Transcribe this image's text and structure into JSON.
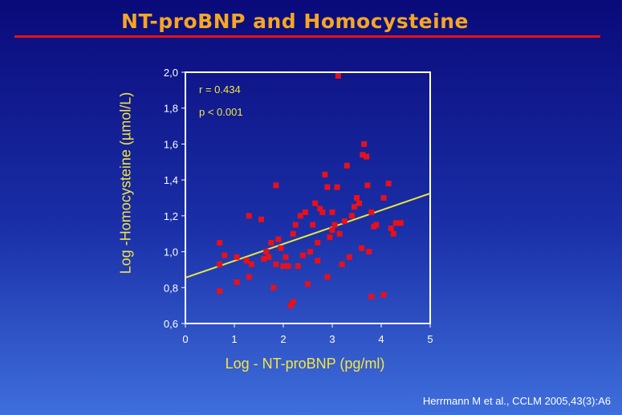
{
  "slide": {
    "title": "NT-proBNP and Homocysteine",
    "citation": "Herrmann M et al., CCLM 2005,43(3):A6"
  },
  "colors": {
    "background_top": "#0a0a7a",
    "background_bottom": "#3f6fdc",
    "title": "#f5a623",
    "rule": "#e8101a",
    "label": "#f5e640",
    "points": "#e8101a",
    "regression_line": "#e8e840",
    "plot_frame": "#ffffff"
  },
  "chart_data": {
    "type": "scatter",
    "xlabel": "Log  - NT-proBNP  (pg/ml)",
    "ylabel": "Log -Homocysteine  (µmol/L)",
    "xlim": [
      0,
      5
    ],
    "ylim": [
      0.6,
      2.0
    ],
    "x_ticks": [
      "0",
      "1",
      "2",
      "3",
      "4",
      "5"
    ],
    "y_ticks": [
      "0,6",
      "0,8",
      "1,0",
      "1,2",
      "1,4",
      "1,6",
      "1,8",
      "2,0"
    ],
    "annotations": [
      "r = 0.434",
      "p < 0.001"
    ],
    "regression": {
      "intercept": 0.855,
      "slope": 0.094
    },
    "points": [
      [
        0.7,
        1.05
      ],
      [
        0.7,
        0.93
      ],
      [
        0.7,
        0.78
      ],
      [
        0.8,
        0.98
      ],
      [
        1.05,
        0.97
      ],
      [
        1.05,
        0.83
      ],
      [
        1.25,
        0.95
      ],
      [
        1.3,
        1.2
      ],
      [
        1.3,
        0.86
      ],
      [
        1.35,
        0.93
      ],
      [
        1.55,
        1.18
      ],
      [
        1.6,
        0.96
      ],
      [
        1.65,
        1.0
      ],
      [
        1.7,
        0.97
      ],
      [
        1.75,
        1.05
      ],
      [
        1.8,
        0.8
      ],
      [
        1.85,
        1.37
      ],
      [
        1.85,
        0.93
      ],
      [
        1.9,
        1.07
      ],
      [
        1.95,
        1.02
      ],
      [
        2.0,
        0.92
      ],
      [
        2.05,
        0.97
      ],
      [
        2.1,
        0.92
      ],
      [
        2.15,
        0.7
      ],
      [
        2.2,
        0.72
      ],
      [
        2.2,
        1.1
      ],
      [
        2.25,
        1.15
      ],
      [
        2.3,
        0.92
      ],
      [
        2.35,
        1.2
      ],
      [
        2.4,
        0.98
      ],
      [
        2.45,
        1.22
      ],
      [
        2.5,
        0.82
      ],
      [
        2.55,
        1.0
      ],
      [
        2.6,
        1.15
      ],
      [
        2.65,
        1.27
      ],
      [
        2.7,
        1.05
      ],
      [
        2.7,
        0.95
      ],
      [
        2.75,
        1.24
      ],
      [
        2.8,
        1.22
      ],
      [
        2.85,
        1.43
      ],
      [
        2.9,
        0.86
      ],
      [
        2.9,
        1.36
      ],
      [
        2.95,
        1.08
      ],
      [
        3.0,
        1.22
      ],
      [
        3.0,
        1.12
      ],
      [
        3.05,
        1.15
      ],
      [
        3.1,
        1.36
      ],
      [
        3.12,
        1.98
      ],
      [
        3.15,
        1.1
      ],
      [
        3.2,
        0.93
      ],
      [
        3.25,
        1.17
      ],
      [
        3.3,
        1.48
      ],
      [
        3.35,
        0.97
      ],
      [
        3.4,
        1.2
      ],
      [
        3.45,
        1.25
      ],
      [
        3.5,
        1.3
      ],
      [
        3.55,
        1.27
      ],
      [
        3.6,
        1.02
      ],
      [
        3.62,
        1.54
      ],
      [
        3.65,
        1.6
      ],
      [
        3.7,
        1.53
      ],
      [
        3.72,
        1.37
      ],
      [
        3.75,
        1.0
      ],
      [
        3.8,
        0.75
      ],
      [
        3.8,
        1.22
      ],
      [
        3.85,
        1.14
      ],
      [
        3.9,
        1.15
      ],
      [
        4.05,
        0.76
      ],
      [
        4.05,
        1.3
      ],
      [
        4.15,
        1.38
      ],
      [
        4.2,
        1.13
      ],
      [
        4.25,
        1.1
      ],
      [
        4.3,
        1.16
      ],
      [
        4.4,
        1.16
      ]
    ]
  }
}
